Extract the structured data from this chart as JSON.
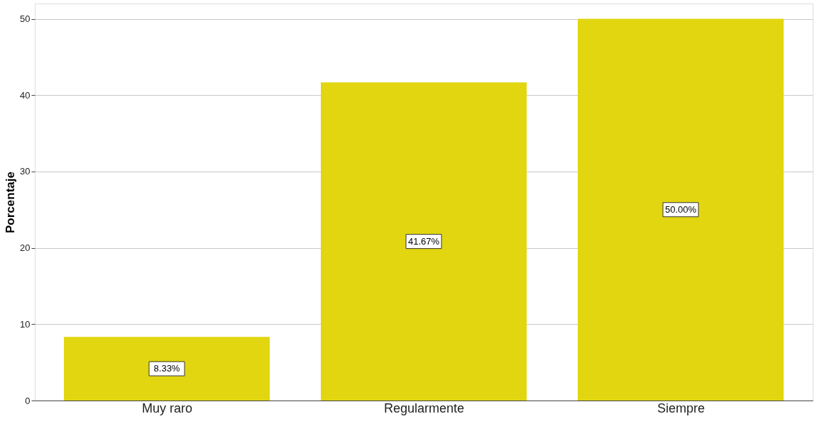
{
  "chart_data": {
    "type": "bar",
    "ylabel": "Porcentaje",
    "categories": [
      "Muy raro",
      "Regularmente",
      "Siempre"
    ],
    "values": [
      8.33,
      41.67,
      50.0
    ],
    "value_labels": [
      "8.33%",
      "41.67%",
      "50.00%"
    ],
    "color": "#e2d610",
    "ylim": [
      0,
      52
    ],
    "yticks": [
      0,
      10,
      20,
      30,
      40,
      50
    ],
    "grid": "y"
  }
}
